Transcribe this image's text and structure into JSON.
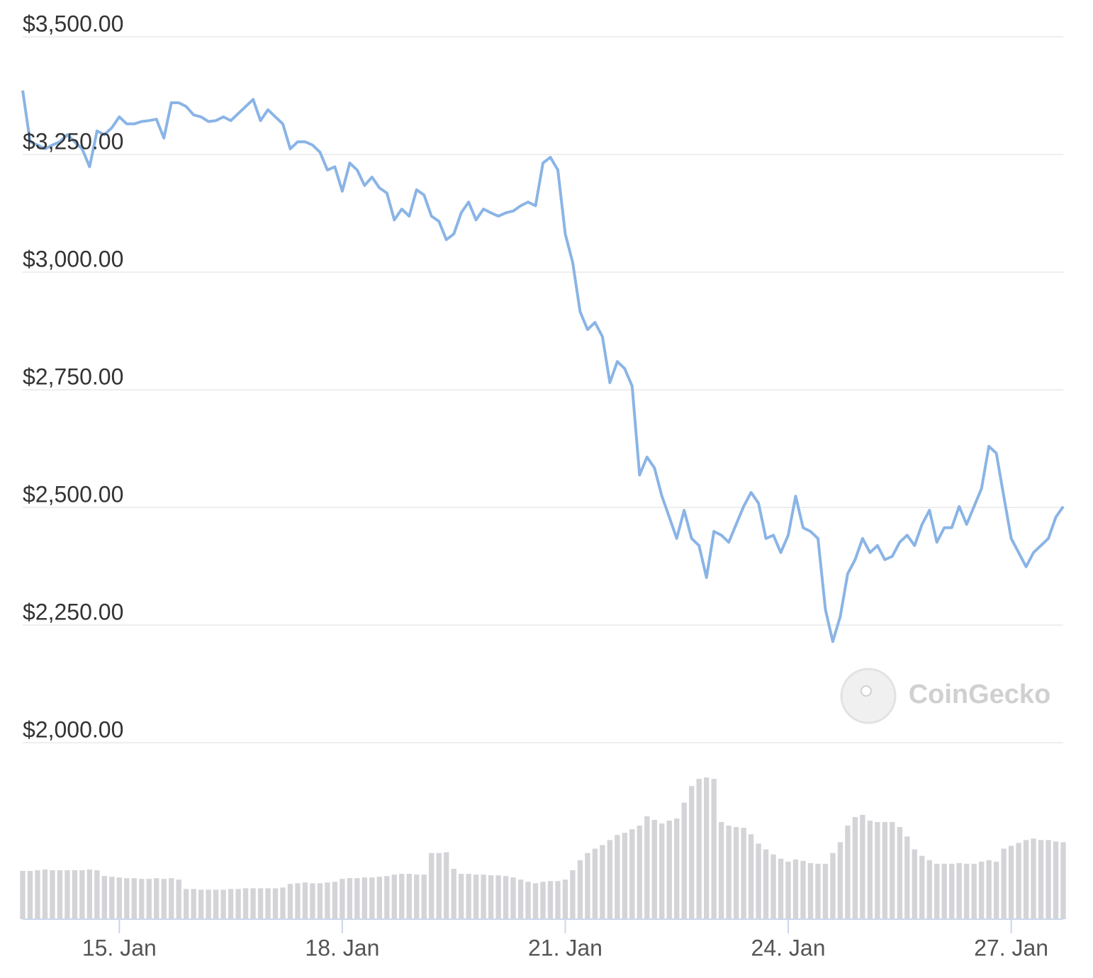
{
  "chart_data": {
    "type": "line",
    "categories": [
      null,
      null,
      null,
      null,
      null,
      null,
      null,
      null,
      null,
      null,
      null,
      null,
      null,
      "15. Jan",
      null,
      null,
      null,
      null,
      null,
      null,
      null,
      null,
      null,
      null,
      null,
      null,
      null,
      null,
      null,
      null,
      null,
      null,
      null,
      null,
      null,
      null,
      null,
      null,
      null,
      null,
      null,
      null,
      null,
      "18. Jan",
      null,
      null,
      null,
      null,
      null,
      null,
      null,
      null,
      null,
      null,
      null,
      null,
      null,
      null,
      null,
      null,
      null,
      null,
      null,
      null,
      null,
      null,
      null,
      null,
      null,
      null,
      null,
      null,
      null,
      "21. Jan",
      null,
      null,
      null,
      null,
      null,
      null,
      null,
      null,
      null,
      null,
      null,
      null,
      null,
      null,
      null,
      null,
      null,
      null,
      null,
      null,
      null,
      null,
      null,
      null,
      null,
      null,
      null,
      null,
      null,
      "24. Jan",
      null,
      null,
      null,
      null,
      null,
      null,
      null,
      null,
      null,
      null,
      null,
      null,
      null,
      null,
      null,
      null,
      null,
      null,
      null,
      null,
      null,
      null,
      null,
      null,
      null,
      null,
      null,
      null,
      null,
      "27. Jan",
      null,
      null,
      null,
      null,
      null,
      null,
      null
    ],
    "series": [
      {
        "color": "#8ab4e6",
        "values": [
          3386,
          3277,
          3270,
          3262,
          3270,
          3277,
          3292,
          3277,
          3262,
          3224,
          3300,
          3292,
          3307,
          3330,
          3315,
          3315,
          3320,
          3322,
          3325,
          3285,
          3360,
          3360,
          3352,
          3334,
          3330,
          3320,
          3322,
          3330,
          3322,
          3337,
          3352,
          3367,
          3322,
          3345,
          3330,
          3315,
          3262,
          3277,
          3277,
          3270,
          3255,
          3217,
          3224,
          3172,
          3232,
          3217,
          3184,
          3202,
          3179,
          3168,
          3111,
          3134,
          3119,
          3175,
          3164,
          3119,
          3108,
          3069,
          3081,
          3126,
          3149,
          3111,
          3134,
          3126,
          3119,
          3126,
          3130,
          3141,
          3149,
          3141,
          3232,
          3244,
          3217,
          3081,
          3021,
          2916,
          2878,
          2893,
          2863,
          2765,
          2810,
          2795,
          2758,
          2569,
          2607,
          2584,
          2524,
          2479,
          2434,
          2494,
          2434,
          2419,
          2351,
          2449,
          2441,
          2426,
          2464,
          2502,
          2532,
          2509,
          2434,
          2441,
          2404,
          2441,
          2524,
          2457,
          2449,
          2434,
          2283,
          2215,
          2268,
          2359,
          2389,
          2434,
          2404,
          2419,
          2389,
          2396,
          2426,
          2441,
          2419,
          2464,
          2494,
          2426,
          2457,
          2457,
          2502,
          2464,
          2502,
          2540,
          2630,
          2615,
          2524,
          2434,
          2404,
          2374,
          2404,
          2419,
          2434,
          2479,
          2502
        ]
      },
      {
        "color": "#d4d4d8",
        "values": [
          67,
          67,
          68,
          69,
          68,
          68,
          68,
          68,
          68,
          69,
          68,
          60,
          59,
          58,
          57,
          57,
          56,
          56,
          57,
          56,
          57,
          55,
          42,
          42,
          41,
          41,
          41,
          41,
          42,
          42,
          43,
          43,
          43,
          43,
          43,
          44,
          49,
          50,
          51,
          50,
          50,
          51,
          52,
          56,
          57,
          57,
          58,
          58,
          59,
          60,
          62,
          63,
          63,
          62,
          62,
          92,
          92,
          93,
          70,
          63,
          63,
          62,
          62,
          61,
          61,
          60,
          58,
          55,
          52,
          50,
          52,
          53,
          53,
          55,
          68,
          82,
          92,
          98,
          103,
          110,
          117,
          120,
          125,
          130,
          143,
          138,
          133,
          137,
          140,
          162,
          185,
          195,
          197,
          195,
          135,
          130,
          128,
          127,
          118,
          105,
          97,
          90,
          84,
          80,
          83,
          81,
          78,
          77,
          77,
          92,
          107,
          130,
          142,
          145,
          137,
          135,
          135,
          135,
          128,
          115,
          97,
          88,
          82,
          77,
          77,
          77,
          78,
          77,
          77,
          80,
          82,
          80,
          98,
          102,
          106,
          110,
          112,
          110,
          110,
          108,
          107
        ]
      }
    ],
    "ylim": [
      2000,
      3500
    ],
    "yticks": [
      {
        "value": 2000,
        "label": "$2,000.00"
      },
      {
        "value": 2250,
        "label": "$2,250.00"
      },
      {
        "value": 2500,
        "label": "$2,500.00"
      },
      {
        "value": 2750,
        "label": "$2,750.00"
      },
      {
        "value": 3000,
        "label": "$3,000.00"
      },
      {
        "value": 3250,
        "label": "$3,250.00"
      },
      {
        "value": 3500,
        "label": "$3,500.00"
      }
    ],
    "grid": true,
    "watermark": "CoinGecko"
  }
}
